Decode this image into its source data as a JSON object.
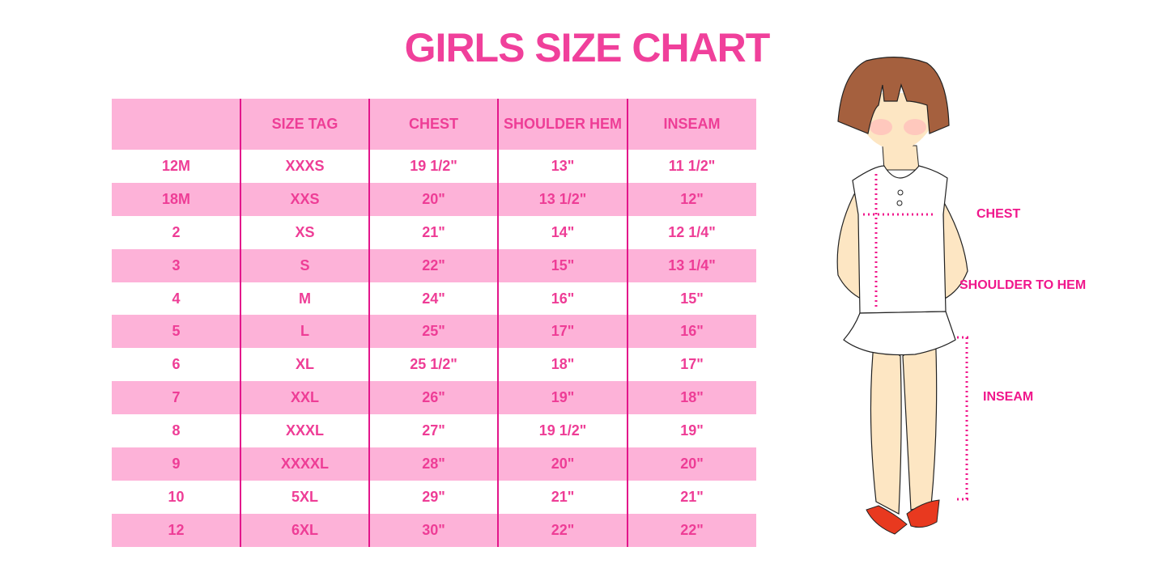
{
  "title": "GIRLS SIZE CHART",
  "table": {
    "headers": [
      "",
      "SIZE TAG",
      "CHEST",
      "SHOULDER HEM",
      "INSEAM"
    ],
    "rows": [
      [
        "12M",
        "XXXS",
        "19 1/2\"",
        "13\"",
        "11 1/2\""
      ],
      [
        "18M",
        "XXS",
        "20\"",
        "13 1/2\"",
        "12\""
      ],
      [
        "2",
        "XS",
        "21\"",
        "14\"",
        "12 1/4\""
      ],
      [
        "3",
        "S",
        "22\"",
        "15\"",
        "13 1/4\""
      ],
      [
        "4",
        "M",
        "24\"",
        "16\"",
        "15\""
      ],
      [
        "5",
        "L",
        "25\"",
        "17\"",
        "16\""
      ],
      [
        "6",
        "XL",
        "25 1/2\"",
        "18\"",
        "17\""
      ],
      [
        "7",
        "XXL",
        "26\"",
        "19\"",
        "18\""
      ],
      [
        "8",
        "XXXL",
        "27\"",
        "19 1/2\"",
        "19\""
      ],
      [
        "9",
        "XXXXL",
        "28\"",
        "20\"",
        "20\""
      ],
      [
        "10",
        "5XL",
        "29\"",
        "21\"",
        "21\""
      ],
      [
        "12",
        "6XL",
        "30\"",
        "22\"",
        "22\""
      ]
    ]
  },
  "figure": {
    "labels": {
      "chest": "CHEST",
      "shoulder_to_hem": "SHOULDER TO HEM",
      "inseam": "INSEAM"
    }
  },
  "colors": {
    "accent": "#f0409b",
    "row_pink": "#fdb2d8",
    "divider": "#e3168b"
  }
}
